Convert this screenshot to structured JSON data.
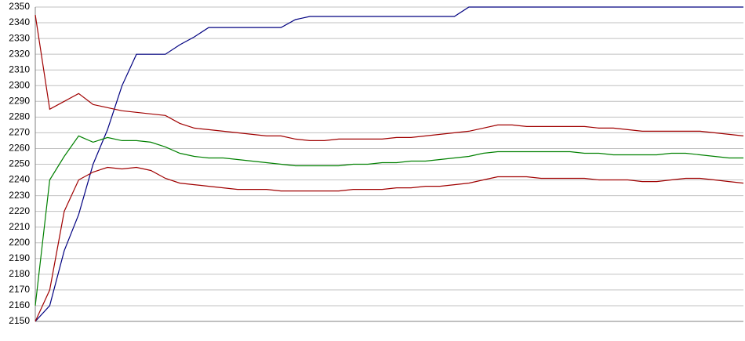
{
  "chart_data": {
    "type": "line",
    "ylim": [
      2150,
      2350
    ],
    "yticks": [
      2150,
      2160,
      2170,
      2180,
      2190,
      2200,
      2210,
      2220,
      2230,
      2240,
      2250,
      2260,
      2270,
      2280,
      2290,
      2300,
      2310,
      2320,
      2330,
      2340,
      2350
    ],
    "grid": true,
    "series": [
      {
        "color": "#000080",
        "values": [
          2150,
          2160,
          2195,
          2218,
          2250,
          2272,
          2300,
          2320,
          2320,
          2320,
          2326,
          2331,
          2337,
          2337,
          2337,
          2337,
          2337,
          2337,
          2342,
          2344,
          2344,
          2344,
          2344,
          2344,
          2344,
          2344,
          2344,
          2344,
          2344,
          2344,
          2350,
          2350,
          2350,
          2350,
          2350,
          2350,
          2350,
          2350,
          2350,
          2350,
          2350,
          2350,
          2350,
          2350,
          2350,
          2350,
          2350,
          2350,
          2350,
          2350
        ]
      },
      {
        "color": "#a00000",
        "values": [
          2345,
          2285,
          2290,
          2295,
          2288,
          2286,
          2284,
          2283,
          2282,
          2281,
          2276,
          2273,
          2272,
          2271,
          2270,
          2269,
          2268,
          2268,
          2266,
          2265,
          2265,
          2266,
          2266,
          2266,
          2266,
          2267,
          2267,
          2268,
          2269,
          2270,
          2271,
          2273,
          2275,
          2275,
          2274,
          2274,
          2274,
          2274,
          2274,
          2273,
          2273,
          2272,
          2271,
          2271,
          2271,
          2271,
          2271,
          2270,
          2269,
          2268
        ]
      },
      {
        "color": "#008000",
        "values": [
          2160,
          2240,
          2255,
          2268,
          2264,
          2267,
          2265,
          2265,
          2264,
          2261,
          2257,
          2255,
          2254,
          2254,
          2253,
          2252,
          2251,
          2250,
          2249,
          2249,
          2249,
          2249,
          2250,
          2250,
          2251,
          2251,
          2252,
          2252,
          2253,
          2254,
          2255,
          2257,
          2258,
          2258,
          2258,
          2258,
          2258,
          2258,
          2257,
          2257,
          2256,
          2256,
          2256,
          2256,
          2257,
          2257,
          2256,
          2255,
          2254,
          2254
        ]
      },
      {
        "color": "#a00000",
        "values": [
          2150,
          2170,
          2220,
          2240,
          2245,
          2248,
          2247,
          2248,
          2246,
          2241,
          2238,
          2237,
          2236,
          2235,
          2234,
          2234,
          2234,
          2233,
          2233,
          2233,
          2233,
          2233,
          2234,
          2234,
          2234,
          2235,
          2235,
          2236,
          2236,
          2237,
          2238,
          2240,
          2242,
          2242,
          2242,
          2241,
          2241,
          2241,
          2241,
          2240,
          2240,
          2240,
          2239,
          2239,
          2240,
          2241,
          2241,
          2240,
          2239,
          2238
        ]
      }
    ]
  }
}
